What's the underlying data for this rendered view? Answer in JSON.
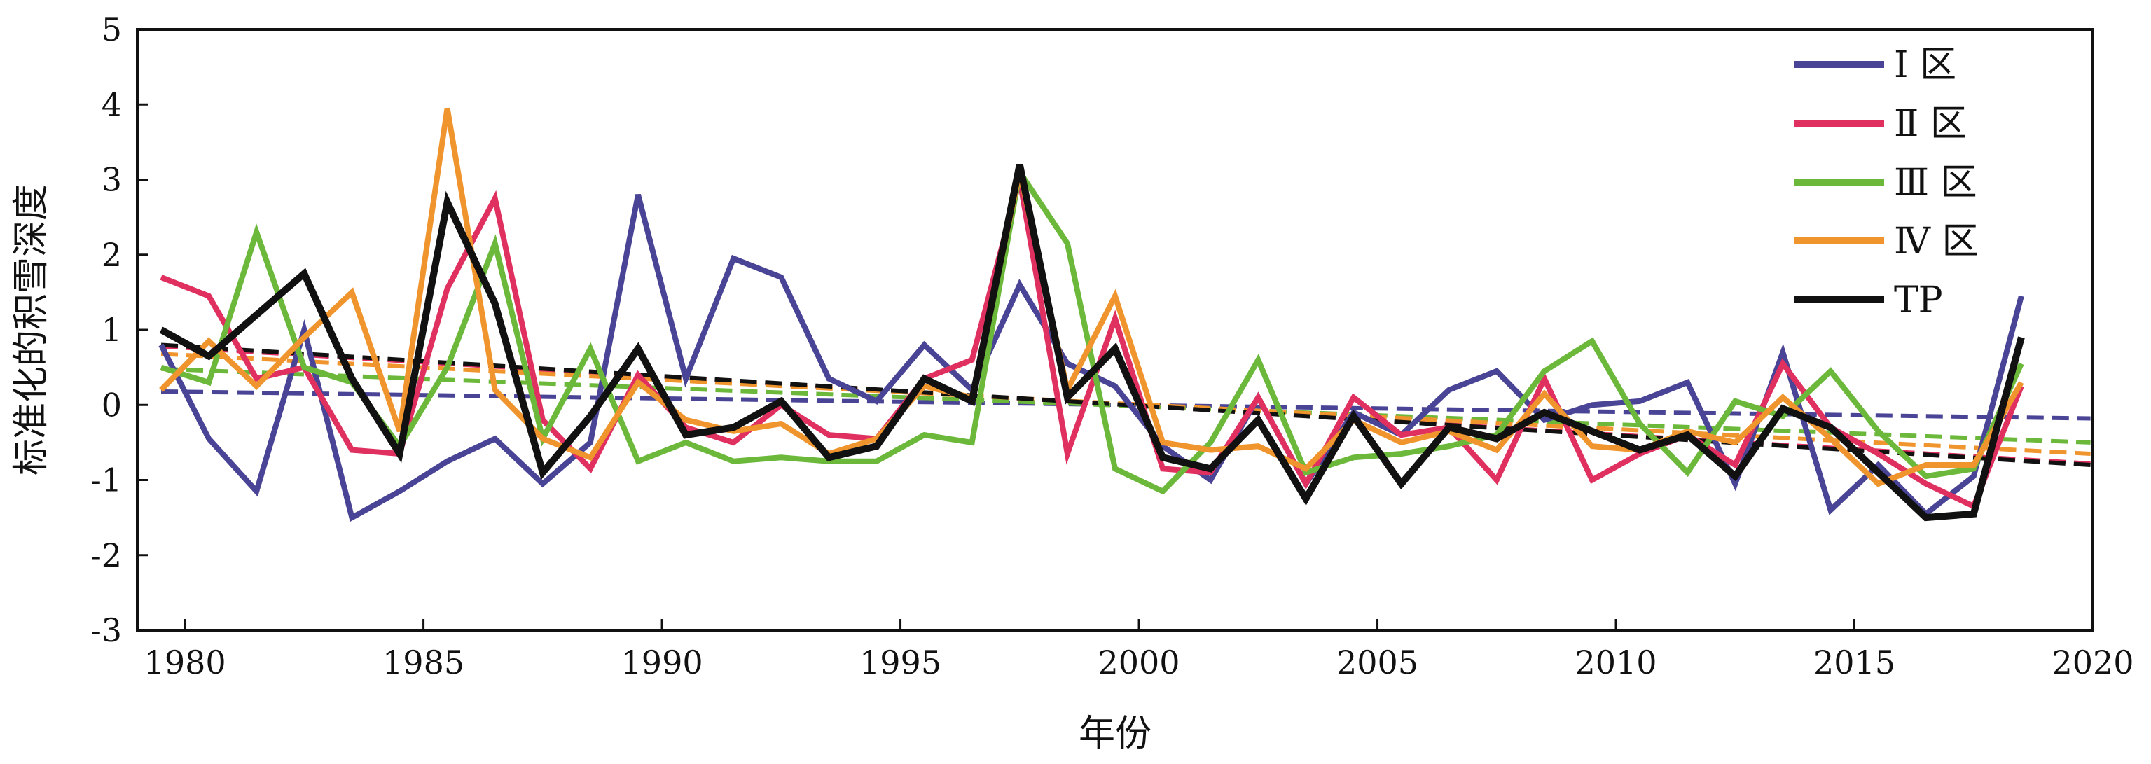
{
  "chart_data": {
    "type": "line",
    "xlabel": "年份",
    "ylabel": "标准化的积雪深度",
    "xlim": [
      1979,
      2020
    ],
    "ylim": [
      -3,
      5
    ],
    "x_ticks": [
      1980,
      1985,
      1990,
      1995,
      2000,
      2005,
      2010,
      2015,
      2020
    ],
    "y_ticks": [
      -3,
      -2,
      -1,
      0,
      1,
      2,
      3,
      4,
      5
    ],
    "grid": false,
    "legend_position": "top-right",
    "x": [
      1979.5,
      1980.5,
      1981.5,
      1982.5,
      1983.5,
      1984.5,
      1985.5,
      1986.5,
      1987.5,
      1988.5,
      1989.5,
      1990.5,
      1991.5,
      1992.5,
      1993.5,
      1994.5,
      1995.5,
      1996.5,
      1997.5,
      1998.5,
      1999.5,
      2000.5,
      2001.5,
      2002.5,
      2003.5,
      2004.5,
      2005.5,
      2006.5,
      2007.5,
      2008.5,
      2009.5,
      2010.5,
      2011.5,
      2012.5,
      2013.5,
      2014.5,
      2015.5,
      2016.5,
      2017.5,
      2018.5
    ],
    "series": [
      {
        "name": "Ⅰ 区",
        "color": "#4a4496",
        "values": [
          0.8,
          -0.45,
          -1.15,
          1.0,
          -1.5,
          -1.15,
          -0.75,
          -0.45,
          -1.05,
          -0.5,
          2.8,
          0.35,
          1.95,
          1.7,
          0.35,
          0.05,
          0.8,
          0.2,
          1.6,
          0.55,
          0.25,
          -0.55,
          -1.0,
          0.1,
          -1.05,
          -0.1,
          -0.4,
          0.2,
          0.45,
          -0.2,
          0.0,
          0.05,
          0.3,
          -1.05,
          0.7,
          -1.4,
          -0.8,
          -1.45,
          -0.95,
          1.45
        ],
        "trend": [
          0.18,
          -0.18
        ]
      },
      {
        "name": "Ⅱ 区",
        "color": "#e03060",
        "values": [
          1.7,
          1.45,
          0.35,
          0.5,
          -0.6,
          -0.65,
          1.55,
          2.75,
          -0.2,
          -0.85,
          0.4,
          -0.3,
          -0.5,
          0.0,
          -0.4,
          -0.45,
          0.35,
          0.6,
          3.0,
          -0.65,
          1.15,
          -0.85,
          -0.9,
          0.1,
          -1.05,
          0.1,
          -0.4,
          -0.3,
          -1.0,
          0.35,
          -1.0,
          -0.65,
          -0.4,
          -0.8,
          0.55,
          -0.3,
          -0.65,
          -1.05,
          -1.35,
          0.25
        ],
        "trend": [
          0.78,
          -0.78
        ]
      },
      {
        "name": "Ⅲ 区",
        "color": "#6bb83a",
        "values": [
          0.5,
          0.3,
          2.3,
          0.5,
          0.3,
          -0.55,
          0.5,
          2.15,
          -0.45,
          0.75,
          -0.75,
          -0.5,
          -0.75,
          -0.7,
          -0.75,
          -0.75,
          -0.4,
          -0.5,
          3.1,
          2.15,
          -0.85,
          -1.15,
          -0.5,
          0.6,
          -0.9,
          -0.7,
          -0.65,
          -0.55,
          -0.4,
          0.45,
          0.85,
          -0.25,
          -0.9,
          0.05,
          -0.15,
          0.45,
          -0.35,
          -0.95,
          -0.85,
          0.55
        ],
        "trend": [
          0.48,
          -0.5
        ]
      },
      {
        "name": "Ⅳ 区",
        "color": "#f0952e",
        "values": [
          0.2,
          0.85,
          0.25,
          0.9,
          1.5,
          -0.35,
          3.95,
          0.2,
          -0.45,
          -0.7,
          0.3,
          -0.2,
          -0.35,
          -0.25,
          -0.65,
          -0.45,
          0.25,
          0.1,
          3.1,
          0.2,
          1.45,
          -0.5,
          -0.6,
          -0.55,
          -0.85,
          -0.2,
          -0.5,
          -0.35,
          -0.6,
          0.15,
          -0.55,
          -0.6,
          -0.35,
          -0.5,
          0.1,
          -0.45,
          -1.05,
          -0.8,
          -0.8,
          0.3
        ],
        "trend": [
          0.68,
          -0.65
        ]
      },
      {
        "name": "TP",
        "color": "#111111",
        "values": [
          1.0,
          0.65,
          1.2,
          1.75,
          0.35,
          -0.65,
          2.7,
          1.35,
          -0.9,
          -0.15,
          0.75,
          -0.4,
          -0.3,
          0.05,
          -0.7,
          -0.55,
          0.35,
          0.05,
          3.2,
          0.1,
          0.75,
          -0.7,
          -0.85,
          -0.2,
          -1.25,
          -0.15,
          -1.05,
          -0.3,
          -0.45,
          -0.1,
          -0.35,
          -0.6,
          -0.4,
          -0.95,
          -0.05,
          -0.3,
          -0.9,
          -1.5,
          -1.45,
          0.9
        ],
        "trend": [
          0.8,
          -0.8
        ]
      }
    ]
  }
}
